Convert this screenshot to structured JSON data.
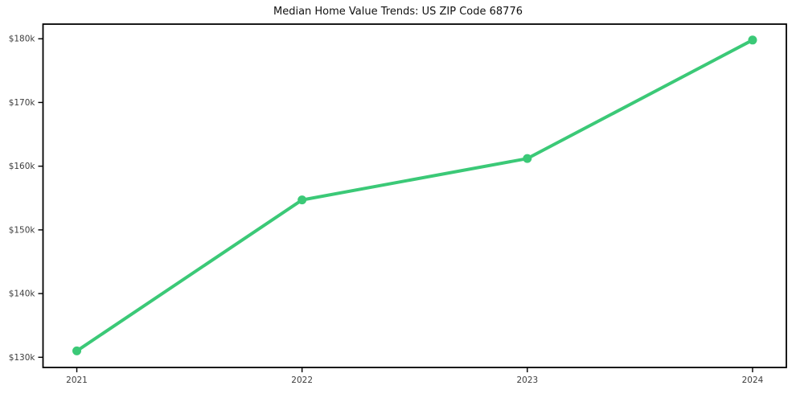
{
  "chart_data": {
    "type": "line",
    "title": "Median Home Value Trends: US ZIP Code 68776",
    "xlabel": "",
    "ylabel": "",
    "x": [
      2021,
      2022,
      2023,
      2024
    ],
    "x_tick_labels": [
      "2021",
      "2022",
      "2023",
      "2024"
    ],
    "y_ticks": [
      130000,
      140000,
      150000,
      160000,
      170000,
      180000
    ],
    "y_tick_labels": [
      "$130k",
      "$140k",
      "$150k",
      "$160k",
      "$170k",
      "$180k"
    ],
    "xlim": [
      2020.85,
      2024.15
    ],
    "ylim": [
      128400,
      182300
    ],
    "grid": false,
    "legend": null,
    "series": [
      {
        "name": "Median Home Value",
        "values": [
          131000,
          154700,
          161200,
          179800
        ],
        "color": "#3bc977",
        "marker": "circle"
      }
    ]
  },
  "colors": {
    "background": "#ffffff",
    "axis": "#000000",
    "tick_label": "#3d3d3d",
    "title": "#111111",
    "line": "#3bc977"
  }
}
